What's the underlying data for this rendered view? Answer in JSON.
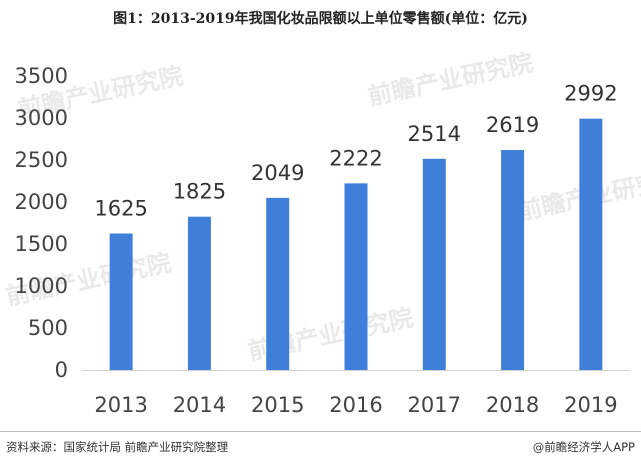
{
  "header": {
    "title": "图1：2013-2019年我国化妆品限额以上单位零售额(单位：亿元)"
  },
  "footer": {
    "source": "资料来源：国家统计局 前瞻产业研究院整理",
    "credit": "@前瞻经济学人APP"
  },
  "watermark": {
    "text": "前瞻产业研究院"
  },
  "colors": {
    "bar": "#3f7fd9",
    "axis": "#d0d0d0",
    "text": "#444444"
  },
  "chart_data": {
    "type": "bar",
    "title": "图1：2013-2019年我国化妆品限额以上单位零售额(单位：亿元)",
    "xlabel": "",
    "ylabel": "",
    "categories": [
      "2013",
      "2014",
      "2015",
      "2016",
      "2017",
      "2018",
      "2019"
    ],
    "values": [
      1625,
      1825,
      2049,
      2222,
      2514,
      2619,
      2992
    ],
    "ylim": [
      0,
      3500
    ],
    "yticks": [
      0,
      500,
      1000,
      1500,
      2000,
      2500,
      3000,
      3500
    ],
    "grid": false,
    "legend": "none",
    "data_labels": true
  }
}
